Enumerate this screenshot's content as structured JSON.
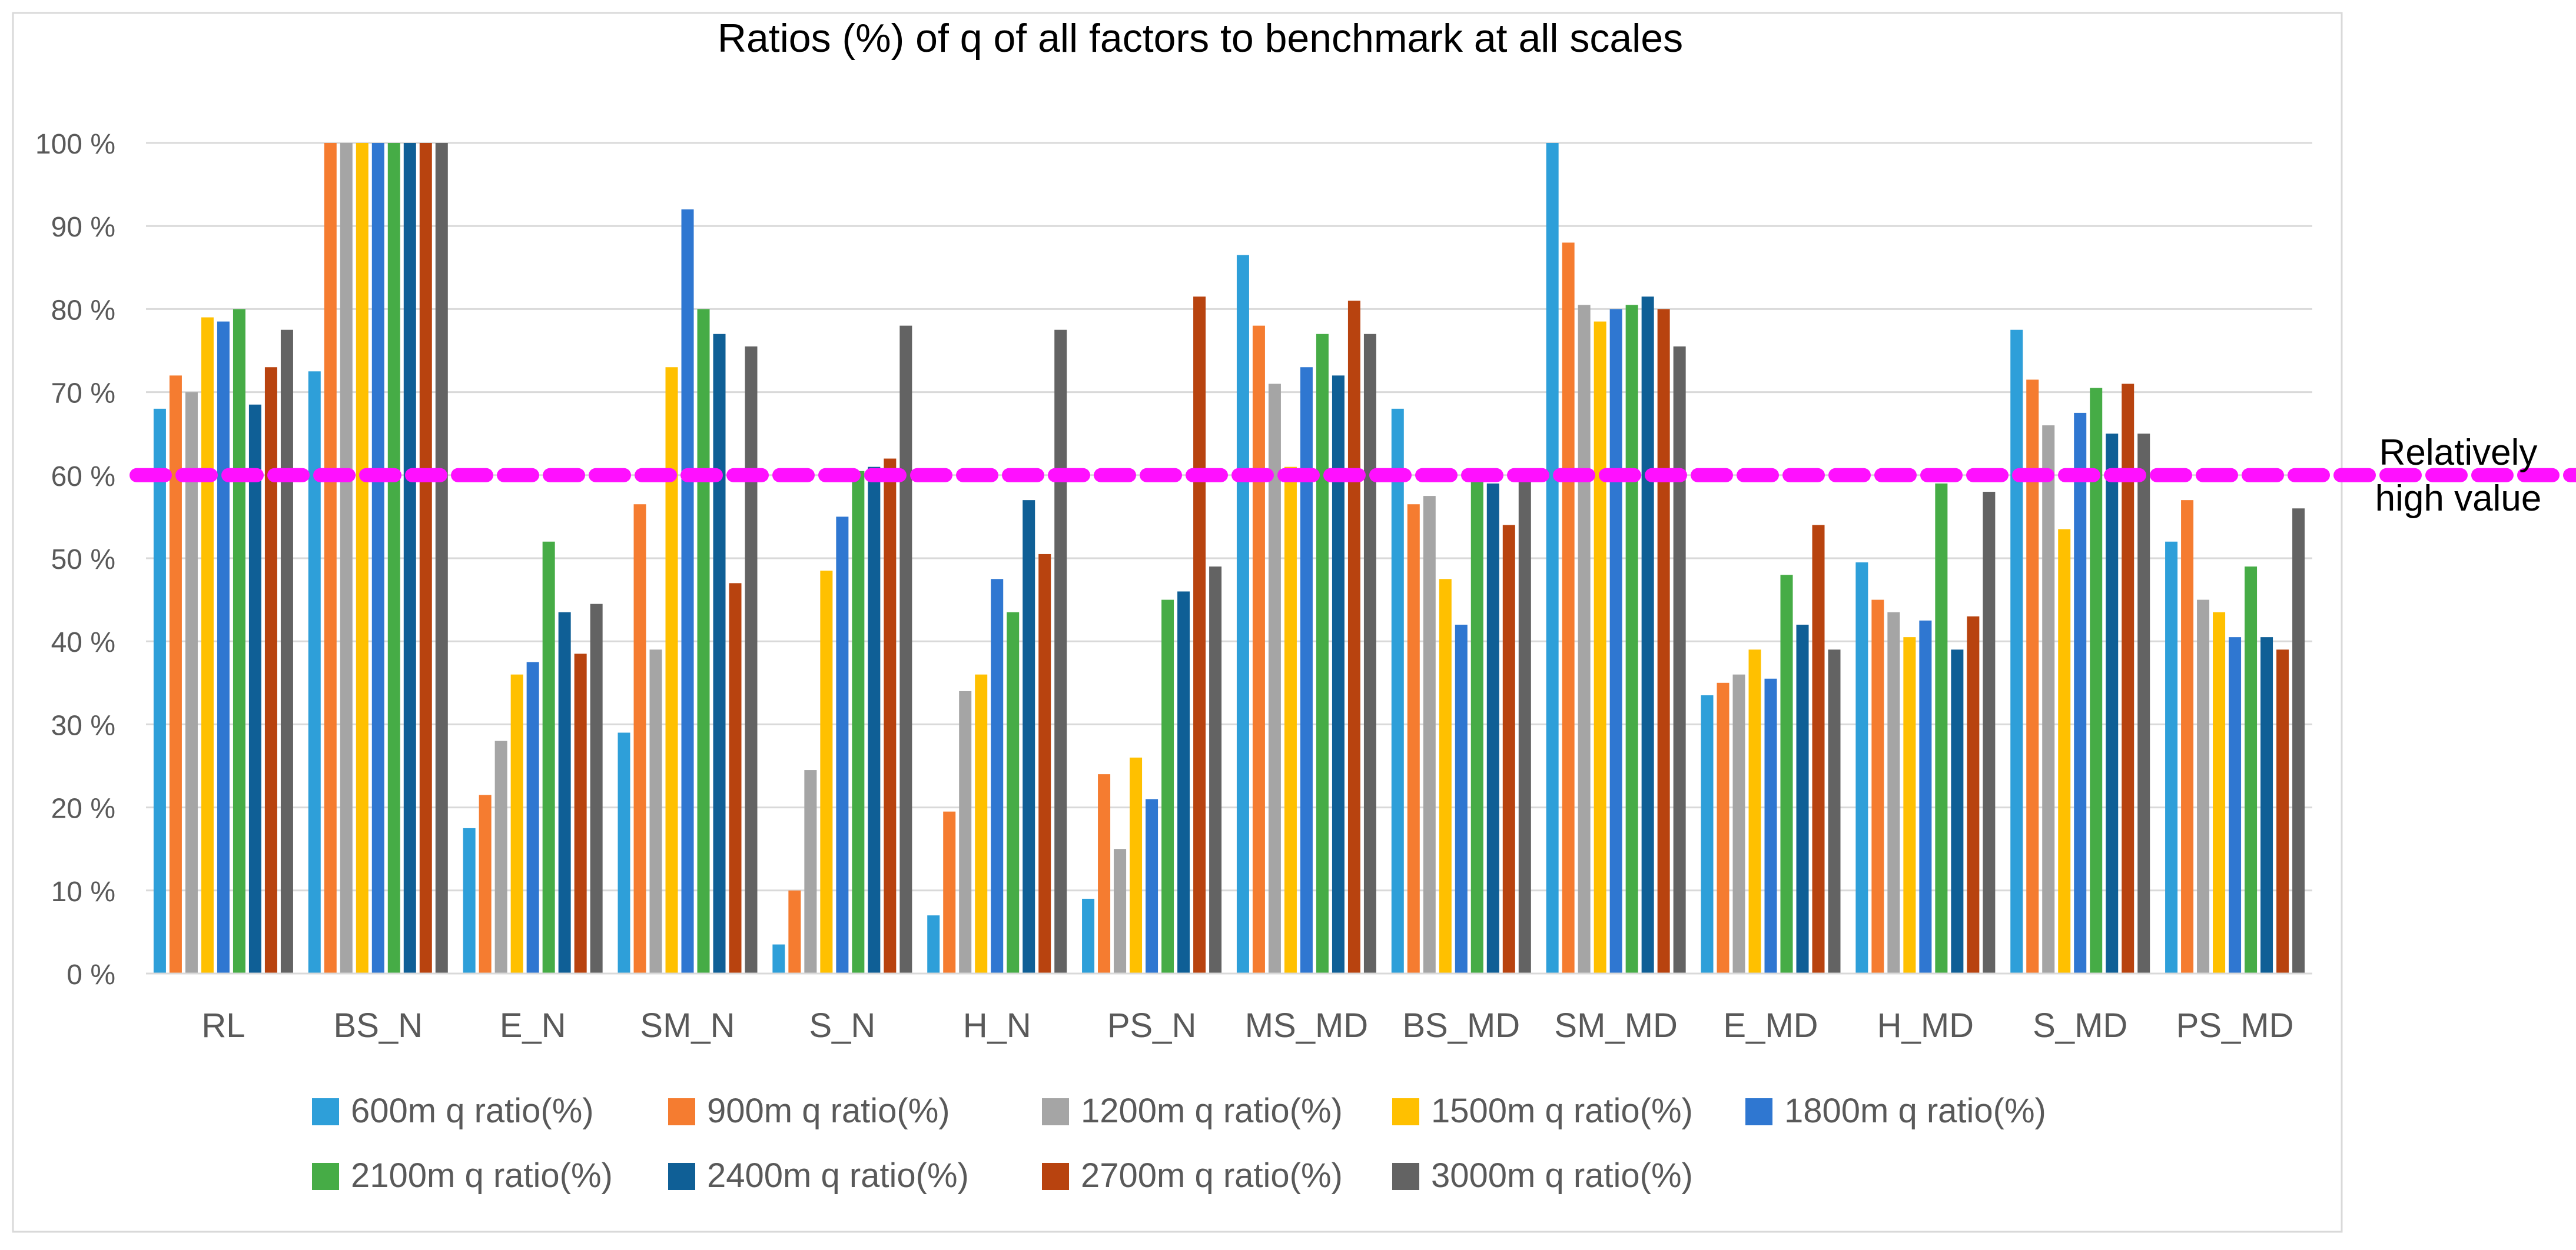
{
  "chart_data": {
    "type": "bar",
    "title": "Ratios (%) of q of all factors to benchmark at all scales",
    "xlabel": "",
    "ylabel": "",
    "ylim": [
      0,
      100
    ],
    "y_ticks": [
      0,
      10,
      20,
      30,
      40,
      50,
      60,
      70,
      80,
      90,
      100
    ],
    "y_tick_labels": [
      "0 %",
      "10 %",
      "20 %",
      "30 %",
      "40 %",
      "50 %",
      "60 %",
      "70 %",
      "80 %",
      "90 %",
      "100 %"
    ],
    "grid": true,
    "legend_position": "bottom",
    "categories": [
      "RL",
      "BS_N",
      "E_N",
      "SM_N",
      "S_N",
      "H_N",
      "PS_N",
      "MS_MD",
      "BS_MD",
      "SM_MD",
      "E_MD",
      "H_MD",
      "S_MD",
      "PS_MD"
    ],
    "series": [
      {
        "name": "600m q ratio(%)",
        "color": "#2e9fd9",
        "values": [
          68,
          72.5,
          17.5,
          29,
          3.5,
          7,
          9,
          86.5,
          68,
          100,
          33.5,
          49.5,
          77.5,
          52
        ]
      },
      {
        "name": "900m q ratio(%)",
        "color": "#f57c30",
        "values": [
          72,
          100,
          21.5,
          56.5,
          10,
          19.5,
          24,
          78,
          56.5,
          88,
          35,
          45,
          71.5,
          57
        ]
      },
      {
        "name": "1200m q ratio(%)",
        "color": "#a5a5a5",
        "values": [
          70,
          100,
          28,
          39,
          24.5,
          34,
          15,
          71,
          57.5,
          80.5,
          36,
          43.5,
          66,
          45
        ]
      },
      {
        "name": "1500m q ratio(%)",
        "color": "#ffc000",
        "values": [
          79,
          100,
          36,
          73,
          48.5,
          36,
          26,
          61,
          47.5,
          78.5,
          39,
          40.5,
          53.5,
          43.5
        ]
      },
      {
        "name": "1800m q ratio(%)",
        "color": "#2f77d1",
        "values": [
          78.5,
          100,
          37.5,
          92,
          55,
          47.5,
          21,
          73,
          42,
          80,
          35.5,
          42.5,
          67.5,
          40.5
        ]
      },
      {
        "name": "2100m q ratio(%)",
        "color": "#46ac46",
        "values": [
          80,
          100,
          52,
          80,
          60.5,
          43.5,
          45,
          77,
          60,
          80.5,
          48,
          59,
          70.5,
          49
        ]
      },
      {
        "name": "2400m q ratio(%)",
        "color": "#0f5f96",
        "values": [
          68.5,
          100,
          43.5,
          77,
          61,
          57,
          46,
          72,
          59,
          81.5,
          42,
          39,
          65,
          40.5
        ]
      },
      {
        "name": "2700m q ratio(%)",
        "color": "#b8430f",
        "values": [
          73,
          100,
          38.5,
          47,
          62,
          50.5,
          81.5,
          81,
          54,
          80,
          54,
          43,
          71,
          39
        ]
      },
      {
        "name": "3000m q ratio(%)",
        "color": "#636363",
        "values": [
          77.5,
          100,
          44.5,
          75.5,
          78,
          77.5,
          49,
          77,
          60,
          75.5,
          39,
          58,
          65,
          56
        ]
      }
    ],
    "reference_line": {
      "value": 60,
      "label_line1": "Relatively",
      "label_line2": "high value",
      "color": "#ff10ff"
    }
  }
}
